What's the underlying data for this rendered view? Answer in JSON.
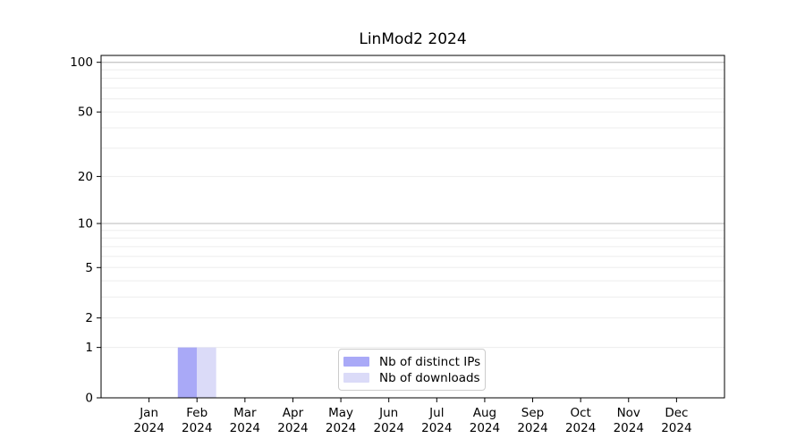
{
  "chart_data": {
    "type": "bar",
    "title": "LinMod2 2024",
    "categories": [
      "Jan 2024",
      "Feb 2024",
      "Mar 2024",
      "Apr 2024",
      "May 2024",
      "Jun 2024",
      "Jul 2024",
      "Aug 2024",
      "Sep 2024",
      "Oct 2024",
      "Nov 2024",
      "Dec 2024"
    ],
    "series": [
      {
        "name": "Nb of distinct IPs",
        "color": "#a9a9f7",
        "values": [
          0,
          1,
          0,
          0,
          0,
          0,
          0,
          0,
          0,
          0,
          0,
          0
        ]
      },
      {
        "name": "Nb of downloads",
        "color": "#dbdbf8",
        "values": [
          0,
          1,
          0,
          0,
          0,
          0,
          0,
          0,
          0,
          0,
          0,
          0
        ]
      }
    ],
    "xlabel": "",
    "ylabel": "",
    "yscale": "log1p",
    "ylim": [
      0,
      110
    ],
    "yticks": [
      0,
      1,
      2,
      5,
      10,
      20,
      50,
      100
    ],
    "minor_gridlines": [
      1,
      2,
      3,
      4,
      5,
      6,
      7,
      8,
      9,
      20,
      30,
      40,
      50,
      60,
      70,
      80,
      90
    ],
    "major_gridlines": [
      10,
      100
    ],
    "grid": true,
    "legend_position": "lower center",
    "colors": {
      "minor_grid": "#ededed",
      "major_grid": "#c8c8c8",
      "axis": "#000000",
      "text": "#000000",
      "background": "#ffffff"
    }
  }
}
